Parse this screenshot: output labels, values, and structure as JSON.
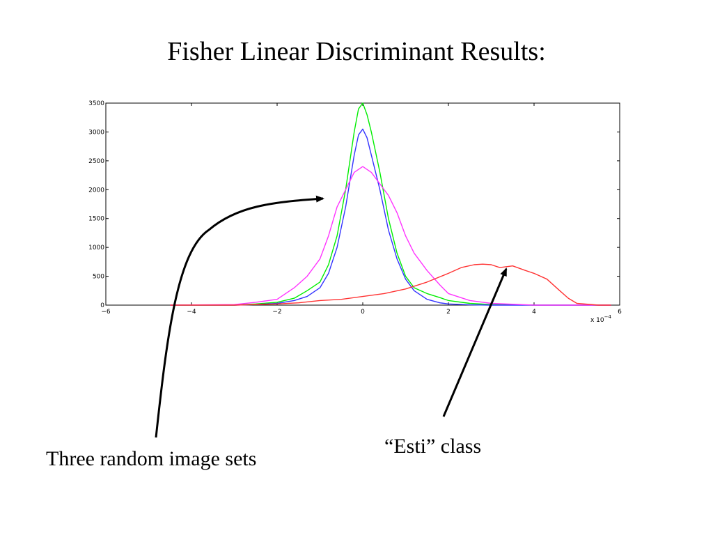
{
  "slide": {
    "title": "Fisher Linear Discriminant Results:",
    "caption_left": "Three random image sets",
    "caption_right": "“Esti” class"
  },
  "chart_data": {
    "type": "line",
    "xlim": [
      -6,
      6
    ],
    "ylim": [
      0,
      3500
    ],
    "x_ticks": [
      -6,
      -4,
      -2,
      0,
      2,
      4,
      6
    ],
    "x_tick_labels": [
      "−6",
      "−4",
      "−2",
      "0",
      "2",
      "4",
      "6"
    ],
    "y_ticks": [
      0,
      500,
      1000,
      1500,
      2000,
      2500,
      3000,
      3500
    ],
    "y_tick_labels": [
      "0",
      "500",
      "1000",
      "1500",
      "2000",
      "2500",
      "3000",
      "3500"
    ],
    "x_multiplier_label": "x 10",
    "x_multiplier_exp": "−4",
    "grid": false,
    "series": [
      {
        "color": "#00ee00",
        "x": [
          -4.5,
          -3,
          -2.5,
          -2,
          -1.6,
          -1.3,
          -1.0,
          -0.8,
          -0.6,
          -0.4,
          -0.2,
          -0.1,
          0,
          0.1,
          0.2,
          0.4,
          0.6,
          0.8,
          1.0,
          1.2,
          1.5,
          1.8,
          2.0,
          2.5,
          3,
          4,
          5.8
        ],
        "y": [
          0,
          0,
          20,
          50,
          120,
          250,
          400,
          700,
          1200,
          2000,
          3000,
          3400,
          3500,
          3300,
          3000,
          2300,
          1500,
          900,
          500,
          300,
          200,
          130,
          80,
          30,
          10,
          0,
          0
        ]
      },
      {
        "color": "#3333ff",
        "x": [
          -4.5,
          -3,
          -2.5,
          -2,
          -1.6,
          -1.3,
          -1.0,
          -0.8,
          -0.6,
          -0.4,
          -0.2,
          -0.1,
          0,
          0.1,
          0.2,
          0.4,
          0.6,
          0.8,
          1.0,
          1.2,
          1.5,
          1.8,
          2.0,
          2.5,
          3,
          4,
          5.8
        ],
        "y": [
          0,
          0,
          10,
          30,
          80,
          150,
          300,
          550,
          1000,
          1700,
          2600,
          2950,
          3050,
          2900,
          2600,
          2000,
          1300,
          800,
          450,
          250,
          100,
          40,
          20,
          5,
          0,
          0,
          0
        ]
      },
      {
        "color": "#ff33ff",
        "x": [
          -4.5,
          -3,
          -2.5,
          -2,
          -1.6,
          -1.3,
          -1.0,
          -0.8,
          -0.6,
          -0.4,
          -0.2,
          0,
          0.2,
          0.4,
          0.6,
          0.8,
          1.0,
          1.2,
          1.5,
          1.8,
          2.0,
          2.5,
          3,
          4,
          5.8
        ],
        "y": [
          0,
          10,
          50,
          100,
          300,
          500,
          800,
          1200,
          1700,
          2000,
          2300,
          2400,
          2300,
          2100,
          1900,
          1600,
          1200,
          900,
          600,
          350,
          200,
          80,
          30,
          0,
          0
        ]
      },
      {
        "color": "#ff3333",
        "x": [
          -4.5,
          -3,
          -2,
          -1.5,
          -1,
          -0.5,
          0,
          0.5,
          1,
          1.5,
          2,
          2.3,
          2.6,
          2.8,
          3.0,
          3.2,
          3.5,
          3.8,
          4.0,
          4.3,
          4.6,
          4.8,
          5.0,
          5.5,
          5.8
        ],
        "y": [
          0,
          0,
          20,
          40,
          80,
          100,
          150,
          200,
          280,
          400,
          550,
          650,
          700,
          710,
          700,
          650,
          680,
          600,
          550,
          450,
          250,
          120,
          30,
          0,
          0
        ]
      }
    ]
  }
}
